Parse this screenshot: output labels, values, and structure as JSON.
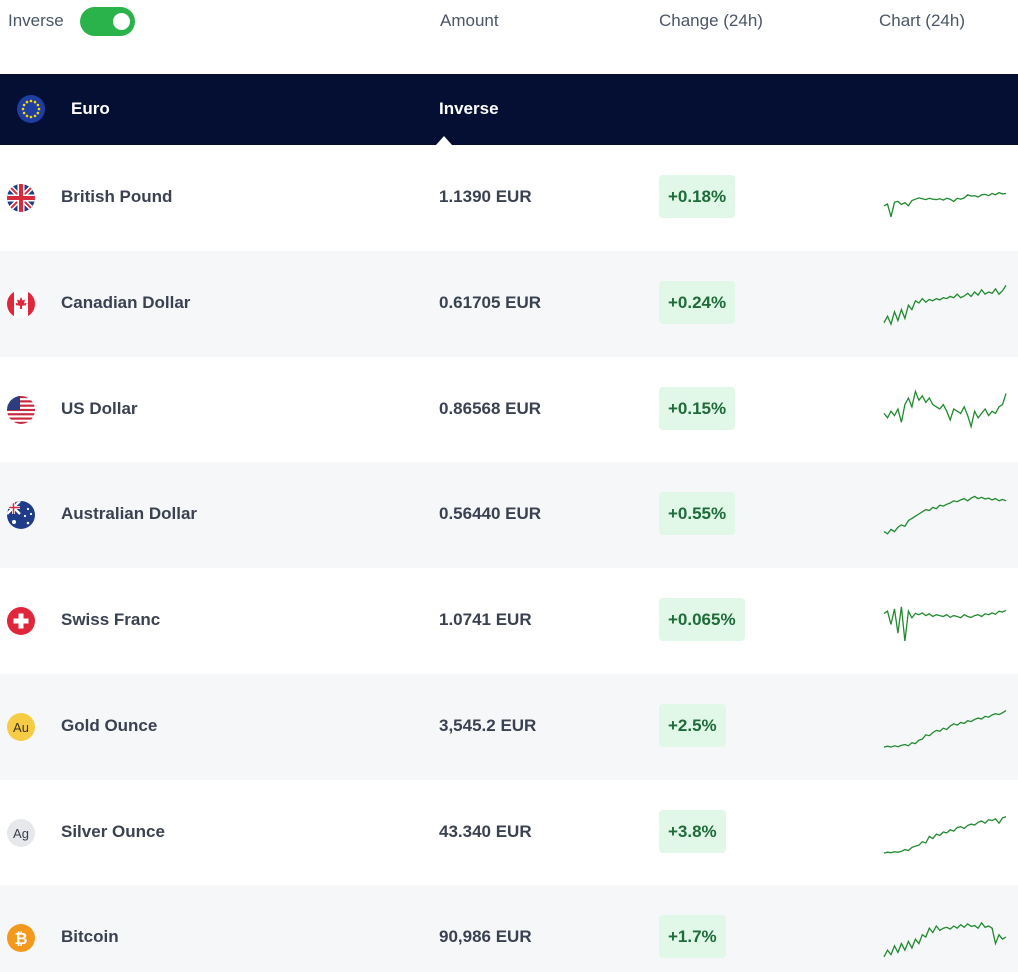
{
  "header": {
    "toggle_label": "Inverse",
    "toggle_on": true,
    "columns": {
      "amount": "Amount",
      "change": "Change (24h)",
      "chart": "Chart (24h)"
    }
  },
  "base": {
    "name": "Euro",
    "mode_label": "Inverse",
    "flag": "eu-flag-icon"
  },
  "colors": {
    "band": "#040f33",
    "positive_bg": "#e1f7e7",
    "positive_text": "#1d6c3a",
    "spark": "#1f8a2e",
    "toggle": "#2ab24b"
  },
  "rows": [
    {
      "name": "British Pound",
      "amount": "1.1390 EUR",
      "change": "+0.18%",
      "icon": "uk-flag-icon",
      "spark": [
        0.3,
        0.34,
        0.05,
        0.38,
        0.4,
        0.33,
        0.37,
        0.3,
        0.42,
        0.45,
        0.48,
        0.46,
        0.44,
        0.47,
        0.45,
        0.44,
        0.46,
        0.43,
        0.47,
        0.45,
        0.4,
        0.47,
        0.45,
        0.48,
        0.55,
        0.52,
        0.53,
        0.5,
        0.55,
        0.56,
        0.53,
        0.58,
        0.55,
        0.6,
        0.57,
        0.58
      ]
    },
    {
      "name": "Canadian Dollar",
      "amount": "0.61705 EUR",
      "change": "+0.24%",
      "icon": "canada-flag-icon",
      "spark": [
        0.05,
        0.2,
        0.02,
        0.3,
        0.1,
        0.35,
        0.15,
        0.45,
        0.35,
        0.55,
        0.5,
        0.6,
        0.52,
        0.58,
        0.55,
        0.6,
        0.57,
        0.62,
        0.6,
        0.65,
        0.62,
        0.7,
        0.62,
        0.66,
        0.72,
        0.65,
        0.75,
        0.68,
        0.8,
        0.7,
        0.75,
        0.72,
        0.82,
        0.7,
        0.78,
        0.9
      ]
    },
    {
      "name": "US Dollar",
      "amount": "0.86568 EUR",
      "change": "+0.15%",
      "icon": "us-flag-icon",
      "spark": [
        0.4,
        0.3,
        0.45,
        0.35,
        0.5,
        0.2,
        0.6,
        0.75,
        0.55,
        0.9,
        0.7,
        0.8,
        0.65,
        0.75,
        0.6,
        0.55,
        0.5,
        0.6,
        0.45,
        0.25,
        0.5,
        0.45,
        0.4,
        0.55,
        0.35,
        0.1,
        0.45,
        0.3,
        0.4,
        0.5,
        0.35,
        0.45,
        0.4,
        0.55,
        0.6,
        0.85
      ]
    },
    {
      "name": "Australian Dollar",
      "amount": "0.56440 EUR",
      "change": "+0.55%",
      "icon": "australia-flag-icon",
      "spark": [
        0.1,
        0.05,
        0.15,
        0.1,
        0.2,
        0.25,
        0.22,
        0.35,
        0.4,
        0.45,
        0.5,
        0.55,
        0.6,
        0.58,
        0.65,
        0.62,
        0.7,
        0.68,
        0.72,
        0.75,
        0.8,
        0.78,
        0.82,
        0.85,
        0.8,
        0.86,
        0.9,
        0.85,
        0.88,
        0.84,
        0.86,
        0.82,
        0.85,
        0.8,
        0.83,
        0.8
      ]
    },
    {
      "name": "Swiss Franc",
      "amount": "1.0741 EUR",
      "change": "+0.065%",
      "icon": "switzerland-flag-icon",
      "spark": [
        0.65,
        0.7,
        0.4,
        0.75,
        0.2,
        0.8,
        0.02,
        0.7,
        0.55,
        0.65,
        0.62,
        0.66,
        0.6,
        0.64,
        0.58,
        0.62,
        0.6,
        0.58,
        0.62,
        0.56,
        0.6,
        0.58,
        0.55,
        0.62,
        0.58,
        0.56,
        0.6,
        0.62,
        0.58,
        0.64,
        0.62,
        0.66,
        0.63,
        0.7,
        0.68,
        0.72
      ]
    },
    {
      "name": "Gold Ounce",
      "amount": "3,545.2 EUR",
      "change": "+2.5%",
      "icon": "gold-au-icon",
      "spark": [
        0.02,
        0.04,
        0.02,
        0.05,
        0.03,
        0.06,
        0.08,
        0.05,
        0.12,
        0.1,
        0.18,
        0.2,
        0.3,
        0.28,
        0.35,
        0.4,
        0.38,
        0.45,
        0.42,
        0.5,
        0.55,
        0.52,
        0.58,
        0.56,
        0.62,
        0.6,
        0.65,
        0.68,
        0.66,
        0.72,
        0.7,
        0.75,
        0.78,
        0.76,
        0.8,
        0.85
      ]
    },
    {
      "name": "Silver Ounce",
      "amount": "43.340 EUR",
      "change": "+3.8%",
      "icon": "silver-ag-icon",
      "spark": [
        0.02,
        0.04,
        0.03,
        0.05,
        0.04,
        0.06,
        0.1,
        0.08,
        0.15,
        0.18,
        0.2,
        0.28,
        0.25,
        0.4,
        0.35,
        0.45,
        0.42,
        0.5,
        0.48,
        0.55,
        0.52,
        0.6,
        0.62,
        0.58,
        0.65,
        0.68,
        0.66,
        0.72,
        0.75,
        0.7,
        0.78,
        0.76,
        0.8,
        0.7,
        0.82,
        0.85
      ]
    },
    {
      "name": "Bitcoin",
      "amount": "90,986 EUR",
      "change": "+1.7%",
      "icon": "bitcoin-icon",
      "spark": [
        0.05,
        0.2,
        0.1,
        0.3,
        0.15,
        0.35,
        0.2,
        0.4,
        0.25,
        0.45,
        0.35,
        0.55,
        0.5,
        0.7,
        0.6,
        0.75,
        0.65,
        0.7,
        0.72,
        0.68,
        0.75,
        0.7,
        0.78,
        0.72,
        0.8,
        0.74,
        0.76,
        0.7,
        0.82,
        0.72,
        0.75,
        0.7,
        0.35,
        0.55,
        0.45,
        0.5
      ]
    }
  ]
}
